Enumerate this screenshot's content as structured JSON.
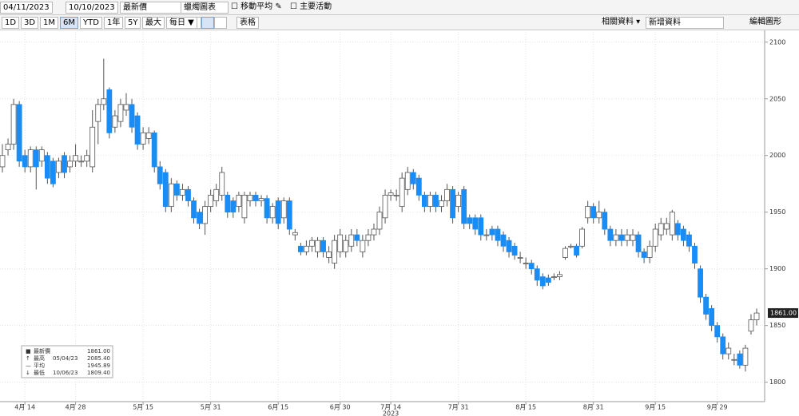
{
  "toolbar": {
    "start_date": "04/11/2023",
    "end_date": "10/10/2023",
    "field": "最新價",
    "chart_style": "蠟燭圖表",
    "moving_average": "移動平均",
    "events": "主要活動",
    "periods": [
      "1D",
      "3D",
      "1M",
      "6M",
      "YTD",
      "1年",
      "5Y",
      "最大"
    ],
    "selected_period": "6M",
    "frequency": "每日 ▼",
    "table": "表格",
    "related": "相關資料 ▾",
    "add_data": "新增資料",
    "edit": "編輯圖形"
  },
  "chart_data": {
    "type": "candlestick",
    "categories": [
      null,
      null,
      null,
      null,
      "4月 14",
      null,
      null,
      null,
      null,
      null,
      null,
      null,
      null,
      "4月 28",
      null,
      null,
      null,
      null,
      null,
      null,
      null,
      null,
      null,
      null,
      null,
      "5月 15",
      null,
      null,
      null,
      null,
      null,
      null,
      null,
      null,
      null,
      null,
      null,
      "5月 31",
      null,
      null,
      null,
      null,
      null,
      null,
      null,
      null,
      null,
      null,
      null,
      "6月 15",
      null,
      null,
      null,
      null,
      null,
      null,
      null,
      null,
      null,
      null,
      "6月 30",
      null,
      null,
      null,
      null,
      null,
      null,
      null,
      null,
      "7月 14",
      null,
      null,
      null,
      null,
      null,
      null,
      null,
      null,
      null,
      null,
      null,
      "7月 31",
      null,
      null,
      null,
      null,
      null,
      null,
      null,
      null,
      null,
      null,
      null,
      "8月 15",
      null,
      null,
      null,
      null,
      null,
      null,
      null,
      null,
      null,
      null,
      null,
      "8月 31",
      null,
      null,
      null,
      null,
      null,
      null,
      null,
      null,
      null,
      null,
      "9月 15",
      null,
      null,
      null,
      null,
      null,
      null,
      null,
      null,
      null,
      null,
      "9月 29",
      null,
      null,
      null,
      null,
      null,
      null,
      null
    ],
    "x_year": "2023",
    "open": [
      1990,
      2005,
      2010,
      2045,
      2000,
      1990,
      2005,
      1995,
      2000,
      1995,
      1985,
      2000,
      1990,
      1995,
      1995,
      1995,
      1990,
      2030,
      2045,
      2058,
      2025,
      2030,
      2040,
      2045,
      2035,
      2010,
      2015,
      2020,
      1990,
      1985,
      1955,
      1975,
      1965,
      1970,
      1960,
      1950,
      1940,
      1955,
      1960,
      1965,
      1965,
      1960,
      1955,
      1945,
      1960,
      1965,
      1960,
      1962,
      1945,
      1960,
      1945,
      1960,
      1930,
      1920,
      1915,
      1920,
      1915,
      1925,
      1910,
      1905,
      1915,
      1915,
      1920,
      1930,
      1915,
      1925,
      1930,
      1935,
      1945,
      1965,
      1965,
      1955,
      1970,
      1985,
      1980,
      1965,
      1955,
      1965,
      1955,
      1960,
      1970,
      1955,
      1970,
      1945,
      1945,
      1945,
      1930,
      1935,
      1935,
      1930,
      1925,
      1920,
      1910,
      1905,
      1905,
      1900,
      1893,
      1892,
      1893,
      1893,
      1910,
      1920,
      1920,
      1920,
      1945,
      1955,
      1945,
      1950,
      1935,
      1925,
      1930,
      1925,
      1925,
      1930,
      1915,
      1910,
      1920,
      1930,
      1935,
      1930,
      1940,
      1935,
      1930,
      1920,
      1900,
      1875,
      1865,
      1850,
      1840,
      1825,
      1820,
      1825,
      1815,
      1845,
      1855
    ],
    "high": [
      2010,
      2015,
      2050,
      2048,
      2005,
      2008,
      2008,
      2008,
      2003,
      1998,
      1998,
      2003,
      2000,
      2010,
      2000,
      2005,
      2040,
      2050,
      2085.4,
      2060,
      2040,
      2050,
      2055,
      2050,
      2038,
      2025,
      2025,
      2022,
      1995,
      1988,
      1980,
      1978,
      1975,
      1973,
      1963,
      1953,
      1960,
      1970,
      1975,
      1990,
      1968,
      1963,
      1968,
      1968,
      1968,
      1968,
      1965,
      1965,
      1958,
      1963,
      1963,
      1963,
      1935,
      1923,
      1925,
      1928,
      1928,
      1928,
      1920,
      1930,
      1935,
      1930,
      1935,
      1935,
      1930,
      1935,
      1940,
      1955,
      1970,
      1970,
      1970,
      1985,
      1990,
      1988,
      1983,
      1968,
      1968,
      1968,
      1965,
      1975,
      1973,
      1968,
      1973,
      1948,
      1948,
      1948,
      1935,
      1938,
      1938,
      1933,
      1928,
      1923,
      1915,
      1910,
      1908,
      1903,
      1896,
      1895,
      1896,
      1898,
      1920,
      1922,
      1922,
      1937,
      1960,
      1958,
      1960,
      1953,
      1938,
      1935,
      1935,
      1935,
      1935,
      1933,
      1918,
      1925,
      1940,
      1945,
      1945,
      1952,
      1943,
      1938,
      1933,
      1923,
      1903,
      1878,
      1868,
      1853,
      1843,
      1835,
      1825,
      1828,
      1833,
      1860,
      1865
    ],
    "low": [
      1985,
      2000,
      2005,
      1990,
      1985,
      1985,
      1970,
      1990,
      1975,
      1972,
      1980,
      1980,
      1985,
      1990,
      1990,
      1990,
      1985,
      2010,
      2040,
      2015,
      2020,
      2025,
      2035,
      2020,
      2005,
      2005,
      2010,
      1985,
      1970,
      1950,
      1950,
      1960,
      1960,
      1955,
      1940,
      1935,
      1930,
      1950,
      1955,
      1960,
      1945,
      1945,
      1950,
      1940,
      1955,
      1955,
      1955,
      1940,
      1940,
      1935,
      1940,
      1930,
      1925,
      1912,
      1912,
      1915,
      1910,
      1910,
      1905,
      1900,
      1910,
      1910,
      1915,
      1920,
      1910,
      1920,
      1925,
      1930,
      1940,
      1960,
      1960,
      1950,
      1965,
      1970,
      1960,
      1950,
      1950,
      1950,
      1950,
      1955,
      1940,
      1950,
      1935,
      1935,
      1930,
      1925,
      1925,
      1925,
      1920,
      1915,
      1910,
      1908,
      1905,
      1900,
      1895,
      1885,
      1882,
      1885,
      1890,
      1890,
      1908,
      1918,
      1910,
      1918,
      1940,
      1940,
      1940,
      1930,
      1920,
      1920,
      1920,
      1920,
      1920,
      1910,
      1905,
      1905,
      1915,
      1925,
      1930,
      1925,
      1925,
      1920,
      1915,
      1900,
      1870,
      1855,
      1845,
      1835,
      1820,
      1820,
      1815,
      1812,
      1809.4,
      1842,
      1850
    ],
    "close": [
      2000,
      2010,
      2045,
      1995,
      1990,
      2005,
      1990,
      2005,
      1980,
      1975,
      1995,
      1985,
      1995,
      2000,
      1995,
      2000,
      2025,
      2045,
      2050,
      2020,
      2035,
      2045,
      2045,
      2025,
      2010,
      2020,
      2020,
      1990,
      1975,
      1955,
      1975,
      1965,
      1970,
      1960,
      1945,
      1940,
      1955,
      1965,
      1970,
      1985,
      1950,
      1950,
      1965,
      1965,
      1965,
      1960,
      1962,
      1945,
      1955,
      1940,
      1960,
      1935,
      1932,
      1915,
      1920,
      1925,
      1925,
      1915,
      1915,
      1925,
      1930,
      1925,
      1930,
      1925,
      1925,
      1930,
      1935,
      1950,
      1965,
      1967,
      1965,
      1980,
      1985,
      1975,
      1965,
      1955,
      1965,
      1955,
      1960,
      1970,
      1945,
      1965,
      1940,
      1940,
      1935,
      1930,
      1930,
      1930,
      1925,
      1920,
      1915,
      1912,
      1910,
      1905,
      1900,
      1890,
      1885,
      1888,
      1893,
      1895,
      1918,
      1920,
      1912,
      1935,
      1955,
      1945,
      1950,
      1935,
      1925,
      1930,
      1925,
      1930,
      1930,
      1915,
      1910,
      1920,
      1935,
      1940,
      1940,
      1950,
      1930,
      1925,
      1920,
      1905,
      1875,
      1860,
      1850,
      1840,
      1825,
      1830,
      1820,
      1815,
      1830,
      1855,
      1861
    ],
    "up_color": "#ffffff",
    "down_color": "#1a8cf5",
    "ylim": [
      1792,
      2109
    ],
    "yticks": [
      1800,
      1850,
      1900,
      1950,
      2000,
      2050,
      2100
    ],
    "grid": true,
    "last_price": {
      "value": 1861,
      "label": "1861.00"
    },
    "legend": [
      {
        "name": "最新價",
        "value": "1861.00"
      },
      {
        "name": "最高",
        "date": "05/04/23",
        "value": "2085.40"
      },
      {
        "name": "平均",
        "value": "1945.89"
      },
      {
        "name": "最低",
        "date": "10/06/23",
        "value": "1809.40"
      }
    ]
  }
}
